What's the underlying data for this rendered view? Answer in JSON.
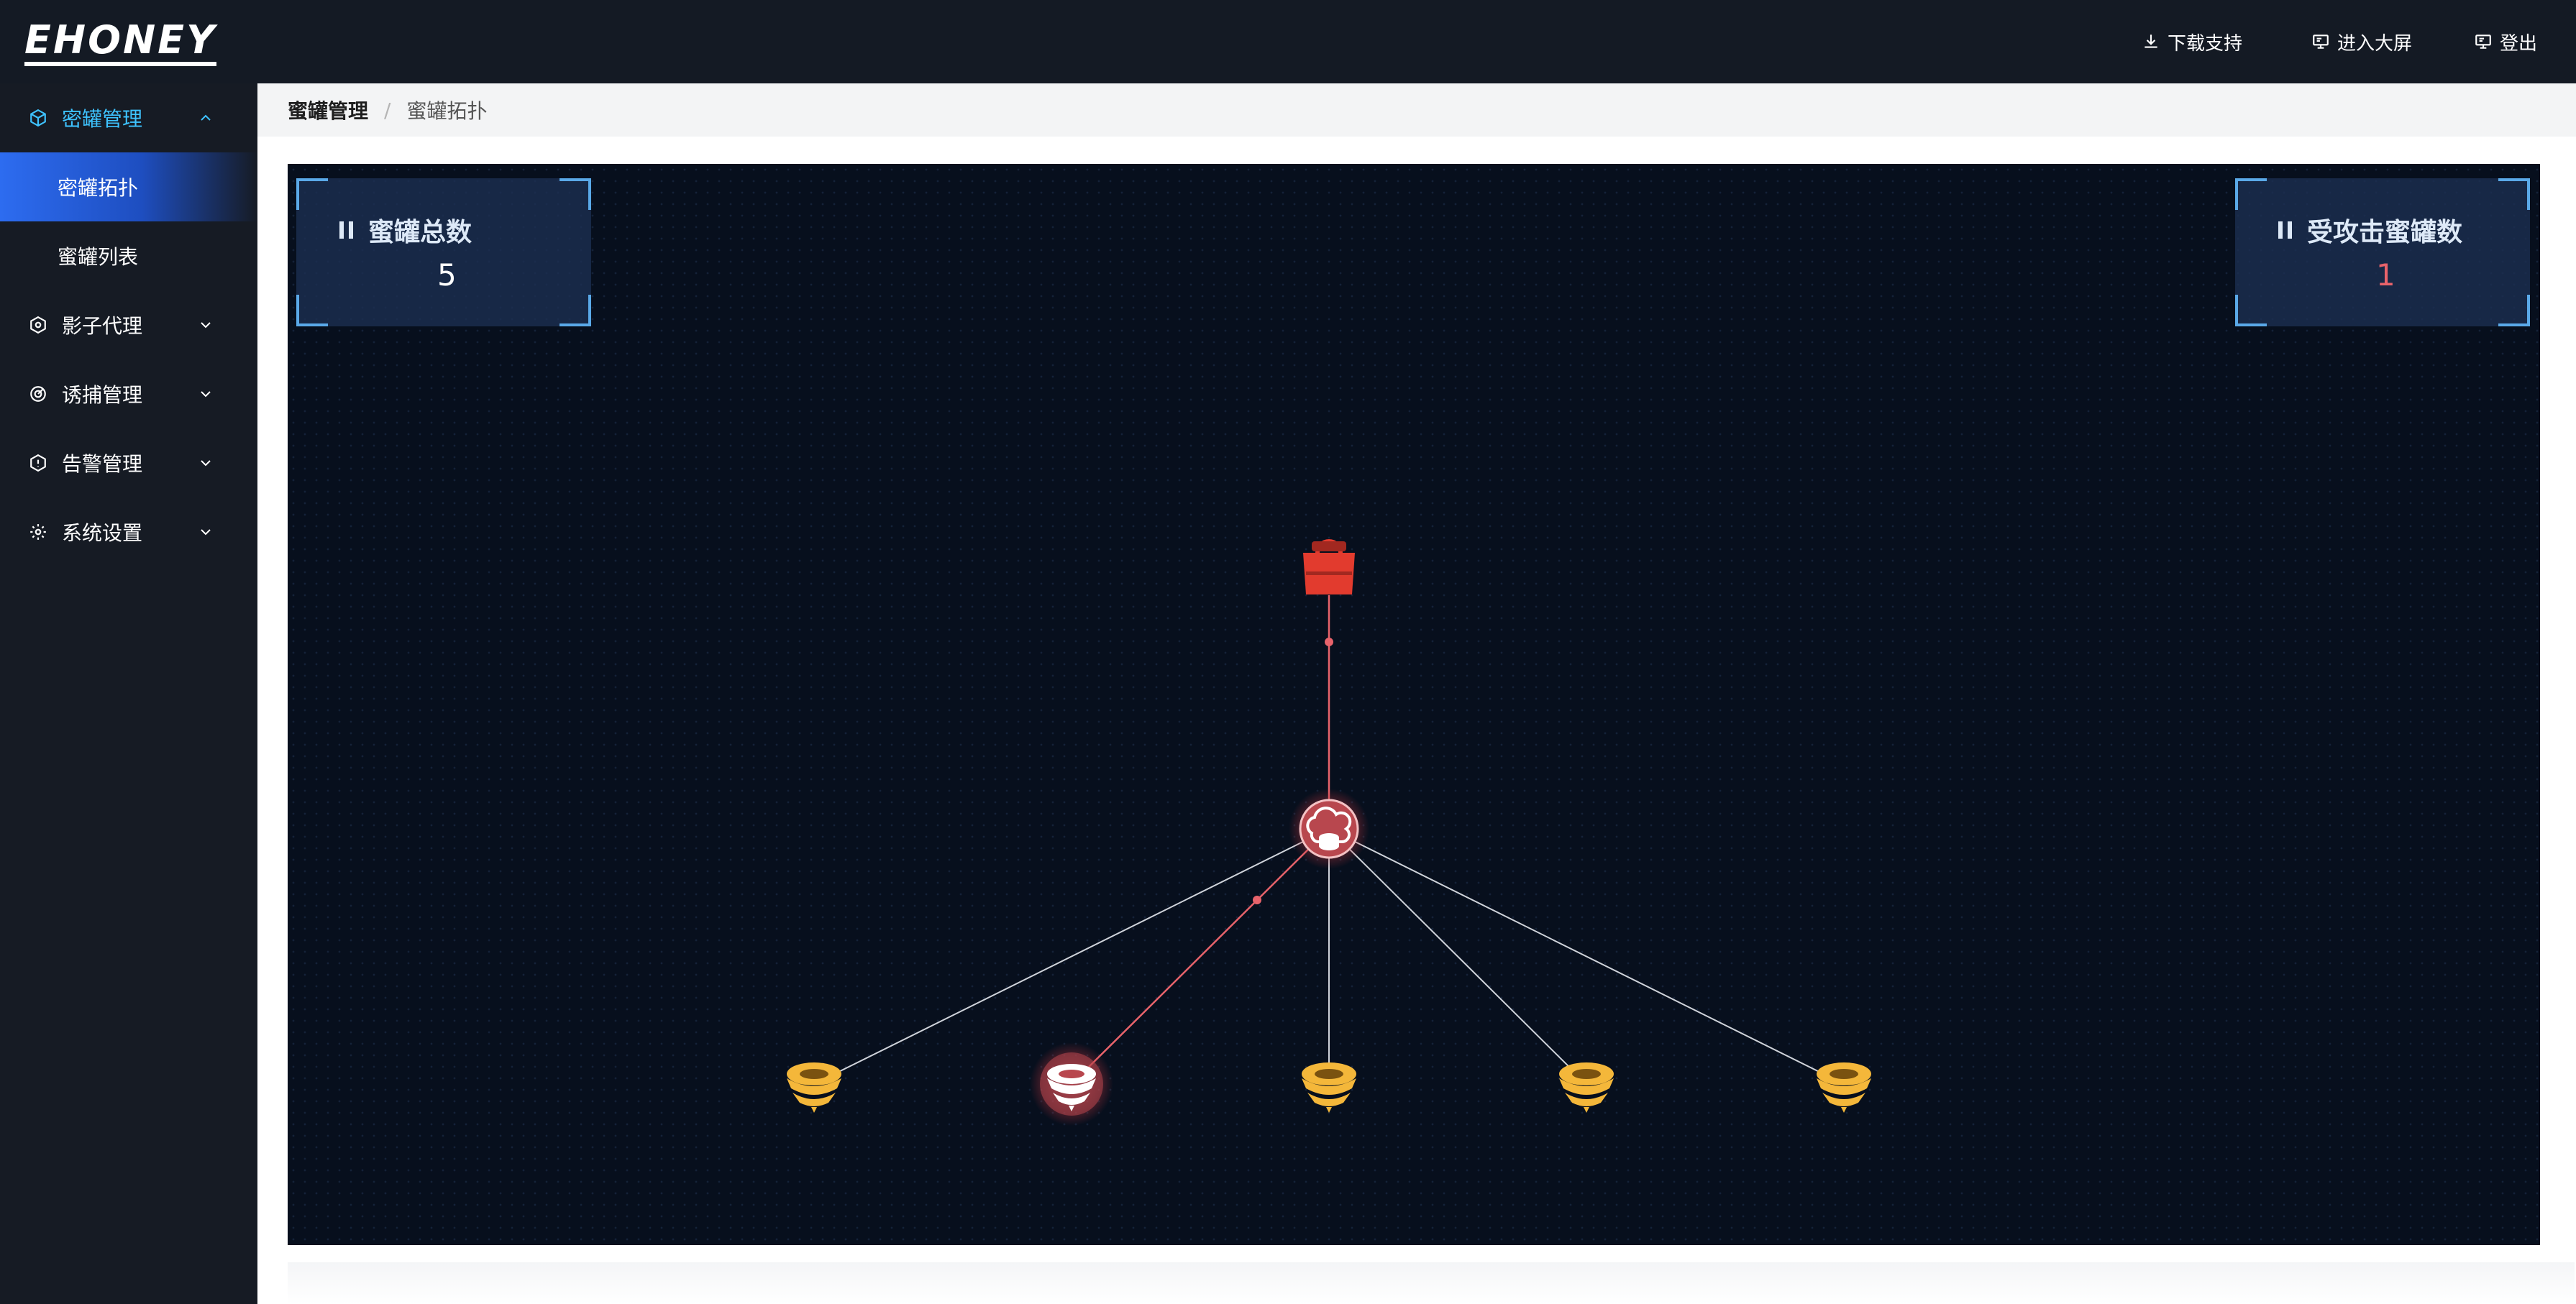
{
  "app": {
    "logo": "EHONEY"
  },
  "header": {
    "download_label": "下载支持",
    "big_screen_label": "进入大屏",
    "logout_label": "登出"
  },
  "sidebar": {
    "menus": [
      {
        "label": "密罐管理",
        "icon": "cube-icon",
        "open": true,
        "children": [
          {
            "label": "密罐拓扑",
            "active": true
          },
          {
            "label": "蜜罐列表",
            "active": false
          }
        ]
      },
      {
        "label": "影子代理",
        "icon": "hexagon-icon"
      },
      {
        "label": "诱捕管理",
        "icon": "radar-icon"
      },
      {
        "label": "告警管理",
        "icon": "alert-hex-icon"
      },
      {
        "label": "系统设置",
        "icon": "gear-icon"
      }
    ]
  },
  "breadcrumb": {
    "parent": "蜜罐管理",
    "separator": "/",
    "current": "蜜罐拓扑"
  },
  "stats": {
    "total": {
      "title": "蜜罐总数",
      "value": "5"
    },
    "attacked": {
      "title": "受攻击蜜罐数",
      "value": "1"
    }
  },
  "colors": {
    "accent": "#3ec3ff",
    "panel_bg": "#070f1d",
    "attack_line": "#e8636b",
    "normal_line": "#cfd3da",
    "honeypot": "#f4b73a",
    "attacker": "#e23b2e"
  },
  "topology": {
    "attacker": {
      "icon": "attacker-icon"
    },
    "hub": {
      "icon": "cloud-server-icon",
      "attacked": true
    },
    "honeypots": [
      {
        "icon": "honeypot-icon",
        "attacked": false
      },
      {
        "icon": "honeypot-icon",
        "attacked": true
      },
      {
        "icon": "honeypot-icon",
        "attacked": false
      },
      {
        "icon": "honeypot-icon",
        "attacked": false
      },
      {
        "icon": "honeypot-icon",
        "attacked": false
      }
    ]
  }
}
